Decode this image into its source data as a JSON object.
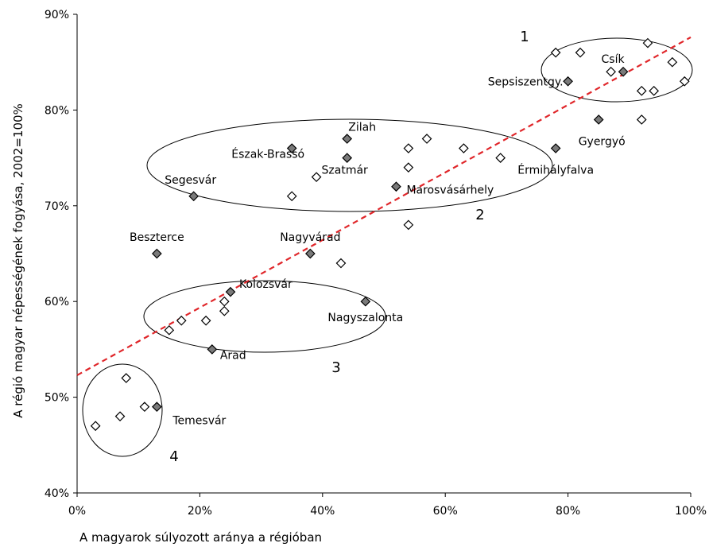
{
  "chart_data": {
    "type": "scatter",
    "xlabel": "A magyarok súlyozott aránya a régióban",
    "ylabel": "A régió magyar népességének fogyása, 2002=100%",
    "xlim": [
      0,
      100
    ],
    "ylim": [
      40,
      90
    ],
    "x_ticks": [
      "0%",
      "20%",
      "40%",
      "60%",
      "80%",
      "100%"
    ],
    "y_ticks": [
      "40%",
      "50%",
      "60%",
      "70%",
      "80%",
      "90%"
    ],
    "grid": false,
    "colors": {
      "open_marker": "#ffffff",
      "filled_marker": "#7a7a7a",
      "trendline": "#e0262a",
      "axis": "#000000"
    },
    "trendline": {
      "x": [
        0,
        100
      ],
      "y": [
        52.3,
        87.6
      ]
    },
    "points": [
      {
        "x": 3,
        "y": 47,
        "filled": false,
        "label": ""
      },
      {
        "x": 7,
        "y": 48,
        "filled": false,
        "label": ""
      },
      {
        "x": 8,
        "y": 52,
        "filled": false,
        "label": ""
      },
      {
        "x": 11,
        "y": 49,
        "filled": false,
        "label": ""
      },
      {
        "x": 13,
        "y": 49,
        "filled": true,
        "label": "Temesvár"
      },
      {
        "x": 13,
        "y": 65,
        "filled": true,
        "label": "Beszterce"
      },
      {
        "x": 15,
        "y": 57,
        "filled": false,
        "label": ""
      },
      {
        "x": 17,
        "y": 58,
        "filled": false,
        "label": ""
      },
      {
        "x": 19,
        "y": 71,
        "filled": true,
        "label": "Segesvár"
      },
      {
        "x": 21,
        "y": 58,
        "filled": false,
        "label": ""
      },
      {
        "x": 22,
        "y": 55,
        "filled": true,
        "label": "Arad"
      },
      {
        "x": 24,
        "y": 59,
        "filled": false,
        "label": ""
      },
      {
        "x": 24,
        "y": 60,
        "filled": false,
        "label": ""
      },
      {
        "x": 25,
        "y": 61,
        "filled": true,
        "label": "Kolozsvár"
      },
      {
        "x": 35,
        "y": 76,
        "filled": true,
        "label": "Észak-Brassó"
      },
      {
        "x": 35,
        "y": 71,
        "filled": false,
        "label": ""
      },
      {
        "x": 38,
        "y": 65,
        "filled": true,
        "label": "Nagyvárad"
      },
      {
        "x": 39,
        "y": 73,
        "filled": false,
        "label": ""
      },
      {
        "x": 43,
        "y": 64,
        "filled": false,
        "label": ""
      },
      {
        "x": 44,
        "y": 77,
        "filled": true,
        "label": "Zilah"
      },
      {
        "x": 44,
        "y": 75,
        "filled": true,
        "label": "Szatmár"
      },
      {
        "x": 47,
        "y": 60,
        "filled": true,
        "label": "Nagyszalonta"
      },
      {
        "x": 52,
        "y": 72,
        "filled": true,
        "label": "Marosvásárhely"
      },
      {
        "x": 54,
        "y": 76,
        "filled": false,
        "label": ""
      },
      {
        "x": 54,
        "y": 74,
        "filled": false,
        "label": ""
      },
      {
        "x": 54,
        "y": 68,
        "filled": false,
        "label": ""
      },
      {
        "x": 57,
        "y": 77,
        "filled": false,
        "label": ""
      },
      {
        "x": 63,
        "y": 76,
        "filled": false,
        "label": ""
      },
      {
        "x": 69,
        "y": 75,
        "filled": false,
        "label": ""
      },
      {
        "x": 78,
        "y": 76,
        "filled": true,
        "label": "Érmihályfalva"
      },
      {
        "x": 78,
        "y": 86,
        "filled": false,
        "label": ""
      },
      {
        "x": 80,
        "y": 83,
        "filled": true,
        "label": "Sepsiszentgy."
      },
      {
        "x": 82,
        "y": 86,
        "filled": false,
        "label": ""
      },
      {
        "x": 85,
        "y": 79,
        "filled": true,
        "label": "Gyergyó"
      },
      {
        "x": 87,
        "y": 84,
        "filled": false,
        "label": ""
      },
      {
        "x": 89,
        "y": 84,
        "filled": true,
        "label": "Csík"
      },
      {
        "x": 92,
        "y": 82,
        "filled": false,
        "label": ""
      },
      {
        "x": 92,
        "y": 79,
        "filled": false,
        "label": ""
      },
      {
        "x": 93,
        "y": 87,
        "filled": false,
        "label": ""
      },
      {
        "x": 94,
        "y": 82,
        "filled": false,
        "label": ""
      },
      {
        "x": 97,
        "y": 85,
        "filled": false,
        "label": ""
      },
      {
        "x": 99,
        "y": 83,
        "filled": false,
        "label": ""
      }
    ],
    "groups": [
      {
        "label": "1"
      },
      {
        "label": "2"
      },
      {
        "label": "3"
      },
      {
        "label": "4"
      }
    ]
  }
}
